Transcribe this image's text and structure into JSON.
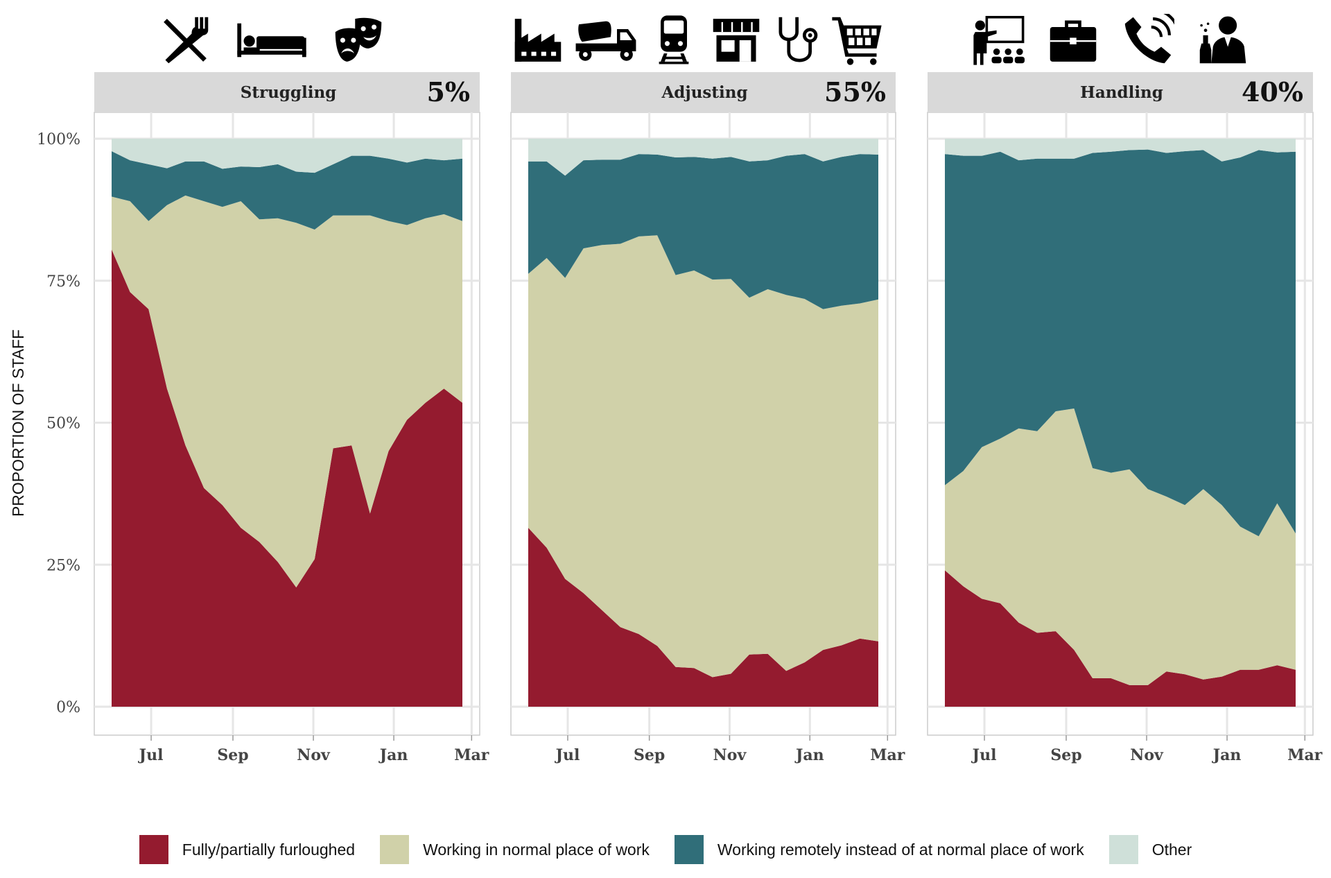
{
  "ylabel": "PROPORTION OF STAFF",
  "colors": {
    "furloughed": "#941b2f",
    "normal": "#d0d1a9",
    "remote": "#306e79",
    "other": "#cfe0d9",
    "strip": "#d9d9d9",
    "grid": "#e6e6e6",
    "panel_border": "#cccccc"
  },
  "icons": {
    "struggling": [
      "cutlery-icon",
      "bed-icon",
      "theatre-masks-icon"
    ],
    "adjusting": [
      "factory-icon",
      "cement-truck-icon",
      "train-icon",
      "storefront-icon",
      "stethoscope-icon",
      "shopping-cart-icon"
    ],
    "handling": [
      "teacher-presentation-icon",
      "briefcase-icon",
      "phone-icon",
      "scientist-icon"
    ]
  },
  "legend": [
    {
      "key": "furloughed",
      "label": "Fully/partially furloughed"
    },
    {
      "key": "normal",
      "label": "Working in normal place of work"
    },
    {
      "key": "remote",
      "label": "Working remotely instead of at normal place of work"
    },
    {
      "key": "other",
      "label": "Other"
    }
  ],
  "chart_data": [
    {
      "type": "area",
      "title": "Struggling",
      "share": "5%",
      "xlabel": "",
      "ylabel": "PROPORTION OF STAFF",
      "x_ticks": [
        "Jul",
        "Sep",
        "Nov",
        "Jan",
        "Mar"
      ],
      "y_ticks": [
        "0%",
        "25%",
        "50%",
        "75%",
        "100%"
      ],
      "ylim": [
        0,
        100
      ],
      "grid": true,
      "stacked": true,
      "x": [
        "2020-06-01",
        "2020-06-15",
        "2020-06-29",
        "2020-07-13",
        "2020-07-27",
        "2020-08-10",
        "2020-08-24",
        "2020-09-07",
        "2020-09-21",
        "2020-10-05",
        "2020-10-19",
        "2020-11-02",
        "2020-11-16",
        "2020-11-30",
        "2020-12-14",
        "2020-12-28",
        "2021-01-11",
        "2021-01-25",
        "2021-02-08",
        "2021-02-22"
      ],
      "series": [
        {
          "name": "Fully/partially furloughed",
          "values": [
            80.5,
            73,
            70,
            56,
            46,
            38.5,
            35.5,
            31.5,
            29,
            25.5,
            21,
            26,
            45.5,
            46,
            34,
            45,
            50.5,
            53.5,
            56,
            53.5
          ]
        },
        {
          "name": "Working in normal place of work",
          "values": [
            9.3,
            16,
            15.5,
            32.3,
            44,
            50.5,
            52.5,
            57.5,
            56.8,
            60.5,
            64.2,
            58,
            41,
            40.5,
            52.5,
            40.5,
            34.3,
            32.5,
            30.7,
            32
          ]
        },
        {
          "name": "Working remotely instead of at normal place of work",
          "values": [
            8,
            7.2,
            10,
            6.5,
            6,
            7,
            6.7,
            6.1,
            9.2,
            9.5,
            9,
            10,
            9,
            10.5,
            10.5,
            11,
            11,
            10.5,
            9.5,
            11
          ]
        },
        {
          "name": "Other",
          "values": [
            2.2,
            3.8,
            4.5,
            5.2,
            4,
            4,
            5.3,
            4.9,
            5,
            4.5,
            5.8,
            6,
            4.5,
            3,
            3,
            3.5,
            4.2,
            3.5,
            3.8,
            3.5
          ]
        }
      ]
    },
    {
      "type": "area",
      "title": "Adjusting",
      "share": "55%",
      "xlabel": "",
      "ylabel": "",
      "x_ticks": [
        "Jul",
        "Sep",
        "Nov",
        "Jan",
        "Mar"
      ],
      "y_ticks": [
        "0%",
        "25%",
        "50%",
        "75%",
        "100%"
      ],
      "ylim": [
        0,
        100
      ],
      "grid": true,
      "stacked": true,
      "x": [
        "2020-06-01",
        "2020-06-15",
        "2020-06-29",
        "2020-07-13",
        "2020-07-27",
        "2020-08-10",
        "2020-08-24",
        "2020-09-07",
        "2020-09-21",
        "2020-10-05",
        "2020-10-19",
        "2020-11-02",
        "2020-11-16",
        "2020-11-30",
        "2020-12-14",
        "2020-12-28",
        "2021-01-11",
        "2021-01-25",
        "2021-02-08",
        "2021-02-22"
      ],
      "series": [
        {
          "name": "Fully/partially furloughed",
          "values": [
            31.5,
            28,
            22.5,
            20,
            17,
            14,
            12.8,
            10.7,
            7,
            6.8,
            5.2,
            5.8,
            9.2,
            9.3,
            6.3,
            7.8,
            10,
            10.8,
            12,
            11.5
          ]
        },
        {
          "name": "Working in normal place of work",
          "values": [
            44.7,
            51,
            53,
            60.7,
            64.3,
            67.5,
            70,
            72.3,
            69,
            70,
            70,
            69.5,
            62.8,
            64.2,
            66.2,
            64,
            60,
            59.8,
            59,
            60.2
          ]
        },
        {
          "name": "Working remotely instead of at normal place of work",
          "values": [
            19.8,
            17,
            18,
            15.5,
            15,
            14.8,
            14.5,
            14.2,
            20.7,
            20,
            21.3,
            21.5,
            24,
            22.7,
            24.5,
            25.5,
            26,
            26.2,
            26.3,
            25.5
          ]
        },
        {
          "name": "Other",
          "values": [
            4,
            4,
            6.5,
            3.8,
            3.7,
            3.7,
            2.7,
            2.8,
            3.3,
            3.2,
            3.5,
            3.2,
            4,
            3.8,
            3,
            2.7,
            4,
            3.2,
            2.7,
            2.8
          ]
        }
      ]
    },
    {
      "type": "area",
      "title": "Handling",
      "share": "40%",
      "xlabel": "",
      "ylabel": "",
      "x_ticks": [
        "Jul",
        "Sep",
        "Nov",
        "Jan",
        "Mar"
      ],
      "y_ticks": [
        "0%",
        "25%",
        "50%",
        "75%",
        "100%"
      ],
      "ylim": [
        0,
        100
      ],
      "grid": true,
      "stacked": true,
      "x": [
        "2020-06-01",
        "2020-06-15",
        "2020-06-29",
        "2020-07-13",
        "2020-07-27",
        "2020-08-10",
        "2020-08-24",
        "2020-09-07",
        "2020-09-21",
        "2020-10-05",
        "2020-10-19",
        "2020-11-02",
        "2020-11-16",
        "2020-11-30",
        "2020-12-14",
        "2020-12-28",
        "2021-01-11",
        "2021-01-25",
        "2021-02-08",
        "2021-02-22"
      ],
      "series": [
        {
          "name": "Fully/partially furloughed",
          "values": [
            24,
            21.2,
            19,
            18.2,
            14.8,
            13,
            13.3,
            10,
            5,
            5,
            3.8,
            3.8,
            6.2,
            5.7,
            4.8,
            5.3,
            6.5,
            6.5,
            7.3,
            6.5
          ]
        },
        {
          "name": "Working in normal place of work",
          "values": [
            15,
            20.3,
            26.7,
            29,
            34.2,
            35.5,
            38.7,
            42.5,
            37,
            36.2,
            38,
            34.5,
            30.8,
            29.8,
            33.5,
            30.2,
            25.2,
            23.5,
            28.5,
            24
          ]
        },
        {
          "name": "Working remotely instead of at normal place of work",
          "values": [
            58.3,
            55.5,
            51.3,
            50.5,
            47.2,
            48,
            44.5,
            44,
            55.5,
            56.5,
            56.2,
            59.8,
            60.5,
            62.3,
            59.7,
            60.5,
            65,
            68,
            61.8,
            67.2
          ]
        },
        {
          "name": "Other",
          "values": [
            2.7,
            3,
            3,
            2.3,
            3.8,
            3.5,
            3.5,
            3.5,
            2.5,
            2.3,
            2,
            1.9,
            2.5,
            2.2,
            2,
            4,
            3.3,
            2,
            2.4,
            2.3
          ]
        }
      ]
    }
  ]
}
